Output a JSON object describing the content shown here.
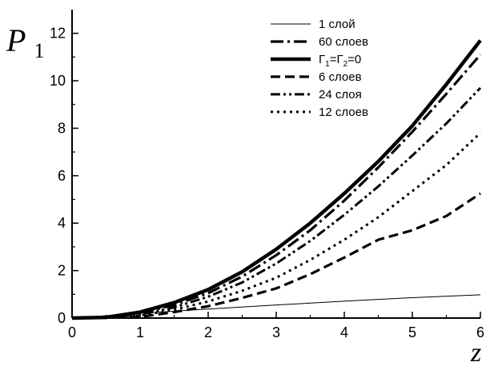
{
  "chart_data": {
    "type": "line",
    "title": "",
    "ylabel": {
      "main": "P",
      "sub": "1"
    },
    "xlabel": "z",
    "xlim": [
      0,
      6
    ],
    "ylim": [
      0,
      13
    ],
    "x_ticks": [
      0,
      1,
      2,
      3,
      4,
      5,
      6
    ],
    "y_ticks": [
      0,
      2,
      4,
      6,
      8,
      10,
      12
    ],
    "grid": false,
    "legend_position": "top-right",
    "series": [
      {
        "name": "1 слой",
        "style": "thin",
        "label_parts": [
          "1 слой"
        ],
        "x": [
          0,
          1,
          2,
          3,
          4,
          5,
          6
        ],
        "y": [
          0,
          0.2,
          0.38,
          0.55,
          0.71,
          0.86,
          0.98
        ]
      },
      {
        "name": "60 слоев",
        "style": "dashdot",
        "label_parts": [
          "60 слоев"
        ],
        "x": [
          0,
          0.5,
          1,
          1.5,
          2,
          2.5,
          3,
          3.5,
          4,
          4.5,
          5,
          5.5,
          6
        ],
        "y": [
          0,
          0.02,
          0.22,
          0.55,
          1.05,
          1.75,
          2.65,
          3.7,
          4.95,
          6.35,
          7.85,
          9.45,
          11.1
        ]
      },
      {
        "name": "Г1=Г2=0",
        "style": "thick",
        "label_parts": [
          "Г",
          "1",
          "=Г",
          "2",
          "=0"
        ],
        "x": [
          0,
          0.5,
          1,
          1.5,
          2,
          2.5,
          3,
          3.5,
          4,
          4.5,
          5,
          5.5,
          6
        ],
        "y": [
          0,
          0.03,
          0.25,
          0.65,
          1.2,
          1.95,
          2.9,
          4.0,
          5.25,
          6.6,
          8.1,
          9.85,
          11.7
        ]
      },
      {
        "name": "6 слоев",
        "style": "dash",
        "label_parts": [
          "6 слоев"
        ],
        "x": [
          0,
          1,
          1.5,
          2,
          2.5,
          3,
          3.5,
          4,
          4.5,
          5,
          5.5,
          6
        ],
        "y": [
          0,
          0.05,
          0.25,
          0.5,
          0.85,
          1.25,
          1.85,
          2.55,
          3.3,
          3.7,
          4.3,
          5.25
        ]
      },
      {
        "name": "24 слоя",
        "style": "dashdotdot",
        "label_parts": [
          "24 слоя"
        ],
        "x": [
          0,
          0.5,
          1,
          1.5,
          2,
          2.5,
          3,
          3.5,
          4,
          4.5,
          5,
          5.5,
          6
        ],
        "y": [
          0,
          0.01,
          0.15,
          0.45,
          0.9,
          1.5,
          2.3,
          3.25,
          4.35,
          5.55,
          6.85,
          8.2,
          9.7
        ]
      },
      {
        "name": "12 слоев",
        "style": "dot",
        "label_parts": [
          "12 слоев"
        ],
        "x": [
          0,
          0.5,
          1,
          1.5,
          2,
          2.5,
          3,
          3.5,
          4,
          4.5,
          5,
          5.5,
          6
        ],
        "y": [
          0,
          0.01,
          0.1,
          0.35,
          0.7,
          1.15,
          1.7,
          2.45,
          3.3,
          4.25,
          5.35,
          6.45,
          7.8
        ]
      }
    ]
  }
}
